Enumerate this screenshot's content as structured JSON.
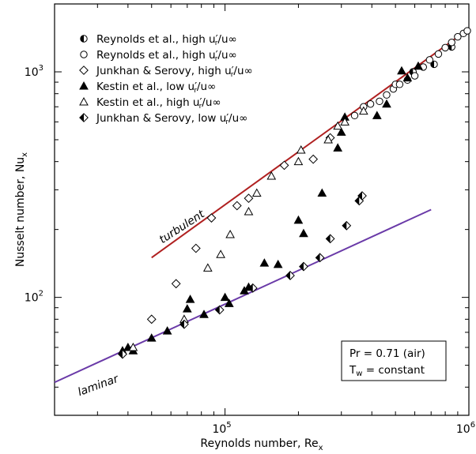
{
  "chart_data": {
    "type": "scatter",
    "x_scale": "log",
    "y_scale": "log",
    "xlim": [
      20000,
      1000000
    ],
    "ylim": [
      30,
      2000
    ],
    "xlabel": "Reynolds number, Re",
    "xlabel_sub": "x",
    "ylabel": "Nusselt number, Nu",
    "ylabel_sub": "x",
    "x_ticks": [
      {
        "value": 100000,
        "base": "10",
        "exp": "5"
      },
      {
        "value": 1000000,
        "base": "10",
        "exp": "6"
      }
    ],
    "y_ticks": [
      {
        "value": 100,
        "base": "10",
        "exp": "2"
      },
      {
        "value": 1000,
        "base": "10",
        "exp": "3"
      }
    ],
    "legend_position": "top-left",
    "series": [
      {
        "name": "Reynolds et al., high u′r/u∞",
        "legend_text": "Reynolds et al., high u",
        "legend_suffix": "/u∞",
        "marker": "half-circle",
        "points": [
          [
            590000,
            1000
          ],
          [
            720000,
            1080
          ],
          [
            850000,
            1290
          ]
        ]
      },
      {
        "name": "Reynolds et al., high u′r/u∞",
        "legend_text": "Reynolds et al., high u",
        "legend_suffix": "/u∞",
        "marker": "circle",
        "points": [
          [
            340000,
            640
          ],
          [
            370000,
            700
          ],
          [
            395000,
            720
          ],
          [
            430000,
            740
          ],
          [
            460000,
            790
          ],
          [
            490000,
            840
          ],
          [
            500000,
            880
          ],
          [
            520000,
            880
          ],
          [
            560000,
            920
          ],
          [
            600000,
            960
          ],
          [
            650000,
            1050
          ],
          [
            690000,
            1130
          ],
          [
            750000,
            1200
          ],
          [
            800000,
            1280
          ],
          [
            850000,
            1350
          ],
          [
            900000,
            1430
          ],
          [
            950000,
            1480
          ],
          [
            985000,
            1520
          ]
        ]
      },
      {
        "name": "Junkhan & Serovy, high u′r/u∞",
        "legend_text": "Junkhan & Serovy, high u",
        "legend_suffix": "/u∞",
        "marker": "diamond",
        "points": [
          [
            50000,
            80
          ],
          [
            63000,
            115
          ],
          [
            76000,
            165
          ],
          [
            88000,
            225
          ],
          [
            112000,
            255
          ],
          [
            125000,
            275
          ],
          [
            175000,
            385
          ],
          [
            230000,
            410
          ],
          [
            270000,
            510
          ]
        ]
      },
      {
        "name": "Kestin et al., low u′r/u∞",
        "legend_text": "Kestin et al., low u",
        "legend_suffix": "/u∞",
        "marker": "triangle-filled",
        "points": [
          [
            38000,
            58
          ],
          [
            40000,
            60
          ],
          [
            42000,
            58
          ],
          [
            50000,
            66
          ],
          [
            58000,
            71
          ],
          [
            70000,
            89
          ],
          [
            72000,
            98
          ],
          [
            82000,
            84
          ],
          [
            100000,
            100
          ],
          [
            104000,
            94
          ],
          [
            120000,
            107
          ],
          [
            125000,
            111
          ],
          [
            145000,
            142
          ],
          [
            165000,
            140
          ],
          [
            200000,
            220
          ],
          [
            210000,
            192
          ],
          [
            250000,
            290
          ],
          [
            290000,
            460
          ],
          [
            300000,
            540
          ],
          [
            310000,
            630
          ],
          [
            420000,
            640
          ],
          [
            460000,
            720
          ],
          [
            530000,
            1010
          ],
          [
            560000,
            940
          ],
          [
            620000,
            1060
          ]
        ]
      },
      {
        "name": "Kestin et al., high u′r/u∞",
        "legend_text": "Kestin et al., high u",
        "legend_suffix": "/u∞",
        "marker": "triangle-open",
        "points": [
          [
            42000,
            60
          ],
          [
            68000,
            80
          ],
          [
            85000,
            135
          ],
          [
            96000,
            155
          ],
          [
            105000,
            190
          ],
          [
            125000,
            240
          ],
          [
            135000,
            290
          ],
          [
            155000,
            345
          ],
          [
            200000,
            400
          ],
          [
            205000,
            450
          ],
          [
            265000,
            500
          ],
          [
            290000,
            575
          ],
          [
            310000,
            600
          ],
          [
            370000,
            670
          ]
        ]
      },
      {
        "name": "Junkhan & Serovy, low u′r/u∞",
        "legend_text": "Junkhan & Serovy, low u",
        "legend_suffix": "/u∞",
        "marker": "diamond-half",
        "points": [
          [
            38000,
            56
          ],
          [
            68000,
            76
          ],
          [
            95000,
            88
          ],
          [
            130000,
            110
          ],
          [
            185000,
            125
          ],
          [
            210000,
            137
          ],
          [
            245000,
            150
          ],
          [
            270000,
            182
          ],
          [
            315000,
            208
          ],
          [
            355000,
            268
          ],
          [
            365000,
            282
          ]
        ]
      }
    ],
    "lines": [
      {
        "label": "turbulent",
        "color": "#b02020",
        "x": [
          50000,
          1000000
        ],
        "y": [
          150,
          1550
        ]
      },
      {
        "label": "laminar",
        "color": "#6a3aa8",
        "x": [
          20000,
          700000
        ],
        "y": [
          42,
          245
        ]
      }
    ],
    "annotation": {
      "line1": "Pr = 0.71 (air)",
      "line2_pre": "T",
      "line2_sub": "w",
      "line2_post": " = constant"
    }
  }
}
